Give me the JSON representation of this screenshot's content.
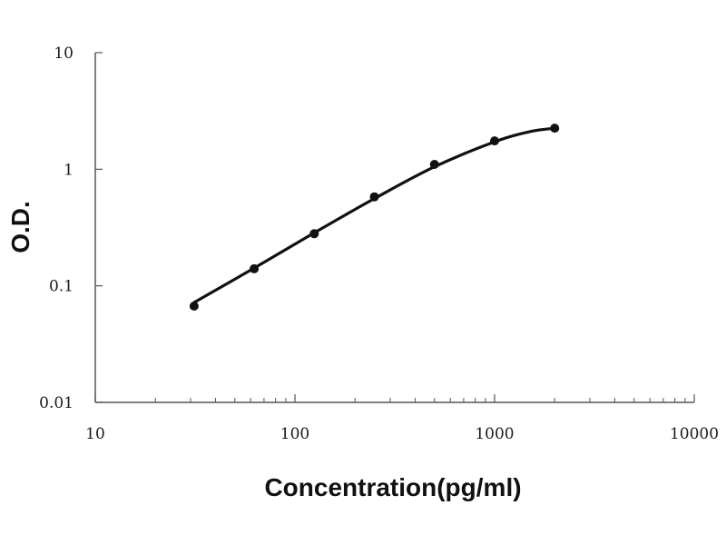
{
  "chart_data": {
    "type": "scatter",
    "title": "",
    "xlabel": "Concentration(pg/ml)",
    "ylabel": "O.D.",
    "x_scale": "log",
    "y_scale": "log",
    "xlim": [
      10,
      10000
    ],
    "ylim": [
      0.01,
      10
    ],
    "x_ticks": [
      "10",
      "100",
      "1000",
      "10000"
    ],
    "y_ticks": [
      "0.01",
      "0.1",
      "1",
      "10"
    ],
    "grid": false,
    "legend": "none",
    "colors": {
      "points": "#111111",
      "curve": "#111111",
      "axes": "#555555"
    },
    "series": [
      {
        "x": [
          31.25,
          62.5,
          125,
          250,
          500,
          1000,
          2000
        ],
        "y": [
          0.067,
          0.14,
          0.28,
          0.58,
          1.1,
          1.75,
          2.25
        ]
      }
    ],
    "fit_curve": {
      "x": [
        31.25,
        62.5,
        125,
        250,
        500,
        1000,
        1500,
        2000
      ],
      "y": [
        0.072,
        0.142,
        0.285,
        0.56,
        1.05,
        1.72,
        2.1,
        2.25
      ]
    }
  }
}
